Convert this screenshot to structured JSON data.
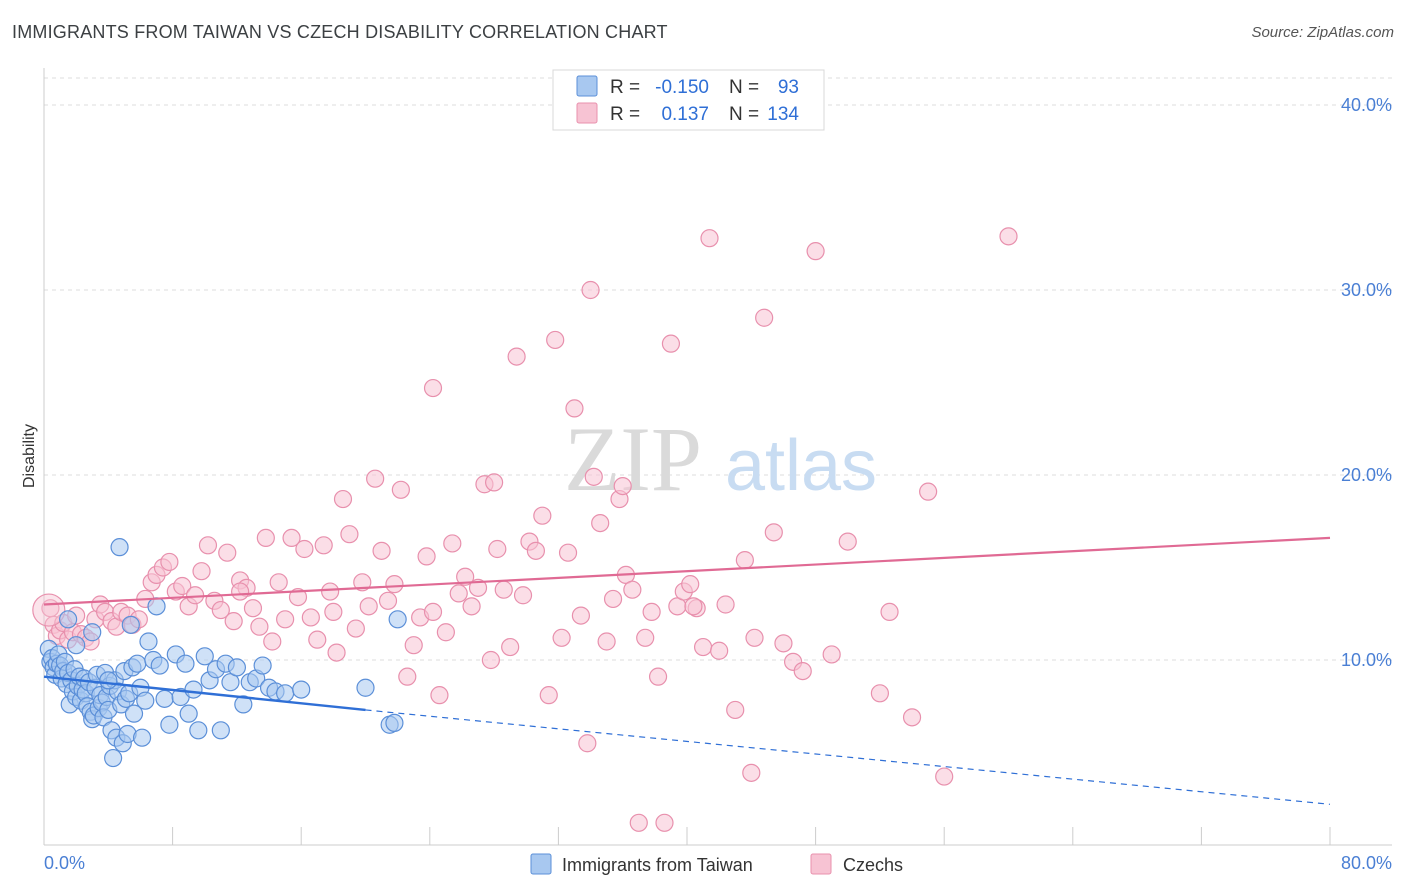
{
  "header": {
    "title": "IMMIGRANTS FROM TAIWAN VS CZECH DISABILITY CORRELATION CHART",
    "source": "Source: ZipAtlas.com"
  },
  "watermark": {
    "zip": "ZIP",
    "atlas": "atlas"
  },
  "legend_stats": [
    {
      "r_label": "R =",
      "r_value": "-0.150",
      "n_label": "N =",
      "n_value": "93"
    },
    {
      "r_label": "R =",
      "r_value": "0.137",
      "n_label": "N =",
      "n_value": "134"
    }
  ],
  "colors": {
    "blue_fill": "#a8c8f0",
    "blue_stroke": "#5b8fd8",
    "blue_line": "#2f6fd6",
    "pink_fill": "#f7c3d3",
    "pink_stroke": "#e890ad",
    "pink_line": "#e06a94",
    "axis_label": "#4a7fd4",
    "grid": "#dddddd"
  },
  "chart_data": {
    "type": "scatter",
    "title": "IMMIGRANTS FROM TAIWAN VS CZECH DISABILITY CORRELATION CHART",
    "xlabel": "",
    "ylabel": "Disability",
    "xlim": [
      0,
      80
    ],
    "ylim": [
      0,
      42
    ],
    "x_tick_labels": [
      "0.0%",
      "80.0%"
    ],
    "y_ticks": [
      10,
      20,
      30,
      40
    ],
    "y_tick_labels": [
      "10.0%",
      "20.0%",
      "30.0%",
      "40.0%"
    ],
    "grid": true,
    "legend_position": "bottom",
    "series": [
      {
        "name": "Immigrants from Taiwan",
        "color": "#a8c8f0",
        "trend": {
          "x": [
            0,
            20
          ],
          "y": [
            9.1,
            7.3
          ]
        },
        "trend_extension": {
          "x": [
            20,
            80
          ],
          "y": [
            7.3,
            2.2
          ]
        },
        "points": [
          [
            0.3,
            10.6
          ],
          [
            0.4,
            9.9
          ],
          [
            0.5,
            10.1
          ],
          [
            0.6,
            9.6
          ],
          [
            0.7,
            9.2
          ],
          [
            0.8,
            9.8
          ],
          [
            0.9,
            10.3
          ],
          [
            1.0,
            9.7
          ],
          [
            1.1,
            9.0
          ],
          [
            1.2,
            9.4
          ],
          [
            1.3,
            9.9
          ],
          [
            1.4,
            8.7
          ],
          [
            1.5,
            9.3
          ],
          [
            1.6,
            7.6
          ],
          [
            1.7,
            8.9
          ],
          [
            1.8,
            8.3
          ],
          [
            1.9,
            9.5
          ],
          [
            2.0,
            8.0
          ],
          [
            2.1,
            8.6
          ],
          [
            2.2,
            9.1
          ],
          [
            2.3,
            7.8
          ],
          [
            2.4,
            8.4
          ],
          [
            2.5,
            9.0
          ],
          [
            2.6,
            8.2
          ],
          [
            2.7,
            7.5
          ],
          [
            2.8,
            8.8
          ],
          [
            2.9,
            7.2
          ],
          [
            3.0,
            6.8
          ],
          [
            3.1,
            7.0
          ],
          [
            3.2,
            8.5
          ],
          [
            3.3,
            9.2
          ],
          [
            3.4,
            7.4
          ],
          [
            3.5,
            8.1
          ],
          [
            3.6,
            7.7
          ],
          [
            3.7,
            6.9
          ],
          [
            3.8,
            9.3
          ],
          [
            3.9,
            8.0
          ],
          [
            4.0,
            7.3
          ],
          [
            4.1,
            8.6
          ],
          [
            4.2,
            6.2
          ],
          [
            4.3,
            4.7
          ],
          [
            4.4,
            8.9
          ],
          [
            4.5,
            5.8
          ],
          [
            4.6,
            8.3
          ],
          [
            4.7,
            16.1
          ],
          [
            4.8,
            7.6
          ],
          [
            4.9,
            5.5
          ],
          [
            5.0,
            9.4
          ],
          [
            5.1,
            7.9
          ],
          [
            5.2,
            6.0
          ],
          [
            5.3,
            8.2
          ],
          [
            5.4,
            11.9
          ],
          [
            5.5,
            9.6
          ],
          [
            5.6,
            7.1
          ],
          [
            5.8,
            9.8
          ],
          [
            6.0,
            8.5
          ],
          [
            6.1,
            5.8
          ],
          [
            6.3,
            7.8
          ],
          [
            6.5,
            11.0
          ],
          [
            6.8,
            10.0
          ],
          [
            7.0,
            12.9
          ],
          [
            7.2,
            9.7
          ],
          [
            7.5,
            7.9
          ],
          [
            7.8,
            6.5
          ],
          [
            8.2,
            10.3
          ],
          [
            8.5,
            8.0
          ],
          [
            8.8,
            9.8
          ],
          [
            9.0,
            7.1
          ],
          [
            9.3,
            8.4
          ],
          [
            9.6,
            6.2
          ],
          [
            10.0,
            10.2
          ],
          [
            10.3,
            8.9
          ],
          [
            10.7,
            9.5
          ],
          [
            11.0,
            6.2
          ],
          [
            11.3,
            9.8
          ],
          [
            11.6,
            8.8
          ],
          [
            12.0,
            9.6
          ],
          [
            12.4,
            7.6
          ],
          [
            12.8,
            8.8
          ],
          [
            13.2,
            9.0
          ],
          [
            13.6,
            9.7
          ],
          [
            14.0,
            8.5
          ],
          [
            14.4,
            8.3
          ],
          [
            15.0,
            8.2
          ],
          [
            16.0,
            8.4
          ],
          [
            2.0,
            10.8
          ],
          [
            3.0,
            11.5
          ],
          [
            4.0,
            8.9
          ],
          [
            1.5,
            12.2
          ],
          [
            20.0,
            8.5
          ],
          [
            21.5,
            6.5
          ],
          [
            22.0,
            12.2
          ],
          [
            21.8,
            6.6
          ]
        ]
      },
      {
        "name": "Czechs",
        "color": "#f7c3d3",
        "trend": {
          "x": [
            0,
            80
          ],
          "y": [
            13.0,
            16.6
          ]
        },
        "points": [
          [
            0.4,
            12.8
          ],
          [
            0.6,
            11.9
          ],
          [
            0.8,
            11.3
          ],
          [
            1.0,
            11.6
          ],
          [
            1.2,
            12.0
          ],
          [
            1.5,
            11.1
          ],
          [
            1.8,
            11.5
          ],
          [
            2.0,
            12.4
          ],
          [
            2.3,
            11.4
          ],
          [
            2.6,
            11.2
          ],
          [
            2.9,
            11.0
          ],
          [
            3.2,
            12.2
          ],
          [
            3.5,
            13.0
          ],
          [
            3.8,
            12.6
          ],
          [
            4.2,
            12.1
          ],
          [
            4.5,
            11.8
          ],
          [
            4.8,
            12.6
          ],
          [
            5.2,
            12.4
          ],
          [
            5.5,
            11.9
          ],
          [
            5.9,
            12.2
          ],
          [
            6.3,
            13.3
          ],
          [
            6.7,
            14.2
          ],
          [
            7.0,
            14.6
          ],
          [
            7.4,
            15.0
          ],
          [
            7.8,
            15.3
          ],
          [
            8.2,
            13.7
          ],
          [
            8.6,
            14.0
          ],
          [
            9.0,
            12.9
          ],
          [
            9.4,
            13.5
          ],
          [
            9.8,
            14.8
          ],
          [
            10.2,
            16.2
          ],
          [
            10.6,
            13.2
          ],
          [
            11.0,
            12.7
          ],
          [
            11.4,
            15.8
          ],
          [
            11.8,
            12.1
          ],
          [
            12.2,
            14.3
          ],
          [
            12.6,
            13.9
          ],
          [
            13.0,
            12.8
          ],
          [
            13.4,
            11.8
          ],
          [
            13.8,
            16.6
          ],
          [
            14.2,
            11.0
          ],
          [
            14.6,
            14.2
          ],
          [
            15.0,
            12.2
          ],
          [
            15.4,
            16.6
          ],
          [
            15.8,
            13.4
          ],
          [
            16.2,
            16.0
          ],
          [
            16.6,
            12.3
          ],
          [
            17.0,
            11.1
          ],
          [
            17.4,
            16.2
          ],
          [
            17.8,
            13.7
          ],
          [
            18.2,
            10.4
          ],
          [
            18.6,
            18.7
          ],
          [
            19.0,
            16.8
          ],
          [
            19.4,
            11.7
          ],
          [
            19.8,
            14.2
          ],
          [
            20.2,
            12.9
          ],
          [
            20.6,
            19.8
          ],
          [
            21.0,
            15.9
          ],
          [
            21.4,
            13.2
          ],
          [
            21.8,
            14.1
          ],
          [
            22.2,
            19.2
          ],
          [
            22.6,
            9.1
          ],
          [
            23.0,
            10.8
          ],
          [
            23.4,
            12.3
          ],
          [
            23.8,
            15.6
          ],
          [
            24.2,
            12.6
          ],
          [
            24.6,
            8.1
          ],
          [
            25.0,
            11.5
          ],
          [
            25.4,
            16.3
          ],
          [
            25.8,
            13.6
          ],
          [
            26.2,
            14.5
          ],
          [
            26.6,
            12.9
          ],
          [
            27.0,
            13.9
          ],
          [
            27.4,
            19.5
          ],
          [
            27.8,
            10.0
          ],
          [
            28.2,
            16.0
          ],
          [
            28.6,
            13.8
          ],
          [
            29.0,
            10.7
          ],
          [
            29.4,
            26.4
          ],
          [
            29.8,
            13.5
          ],
          [
            30.2,
            16.4
          ],
          [
            30.6,
            15.9
          ],
          [
            31.0,
            17.8
          ],
          [
            31.4,
            8.1
          ],
          [
            31.8,
            27.3
          ],
          [
            32.2,
            11.2
          ],
          [
            32.6,
            15.8
          ],
          [
            33.0,
            23.6
          ],
          [
            33.4,
            12.4
          ],
          [
            33.8,
            5.5
          ],
          [
            34.2,
            19.9
          ],
          [
            34.6,
            17.4
          ],
          [
            35.0,
            11.0
          ],
          [
            35.4,
            13.3
          ],
          [
            35.8,
            18.7
          ],
          [
            36.2,
            14.6
          ],
          [
            36.6,
            13.8
          ],
          [
            37.0,
            1.2
          ],
          [
            37.4,
            11.2
          ],
          [
            37.8,
            12.6
          ],
          [
            38.2,
            9.1
          ],
          [
            38.6,
            1.2
          ],
          [
            39.0,
            27.1
          ],
          [
            39.4,
            12.9
          ],
          [
            39.8,
            13.7
          ],
          [
            40.2,
            14.1
          ],
          [
            40.6,
            12.8
          ],
          [
            41.0,
            10.7
          ],
          [
            41.4,
            32.8
          ],
          [
            42.0,
            10.5
          ],
          [
            42.4,
            13.0
          ],
          [
            43.0,
            7.3
          ],
          [
            43.6,
            15.4
          ],
          [
            44.2,
            11.2
          ],
          [
            44.8,
            28.5
          ],
          [
            45.4,
            16.9
          ],
          [
            46.0,
            10.9
          ],
          [
            46.6,
            9.9
          ],
          [
            47.2,
            9.4
          ],
          [
            48.0,
            32.1
          ],
          [
            49.0,
            10.3
          ],
          [
            50.0,
            16.4
          ],
          [
            52.0,
            8.2
          ],
          [
            52.6,
            12.6
          ],
          [
            54.0,
            6.9
          ],
          [
            55.0,
            19.1
          ],
          [
            56.0,
            3.7
          ],
          [
            60.0,
            32.9
          ],
          [
            12.2,
            13.7
          ],
          [
            24.2,
            24.7
          ],
          [
            34.0,
            30.0
          ],
          [
            28.0,
            19.6
          ],
          [
            36.0,
            19.4
          ],
          [
            44.0,
            3.9
          ],
          [
            40.4,
            12.9
          ],
          [
            18.0,
            12.6
          ]
        ]
      }
    ]
  },
  "legend": {
    "items": [
      {
        "label": "Immigrants from Taiwan",
        "color": "#a8c8f0"
      },
      {
        "label": "Czechs",
        "color": "#f7c3d3"
      }
    ]
  }
}
